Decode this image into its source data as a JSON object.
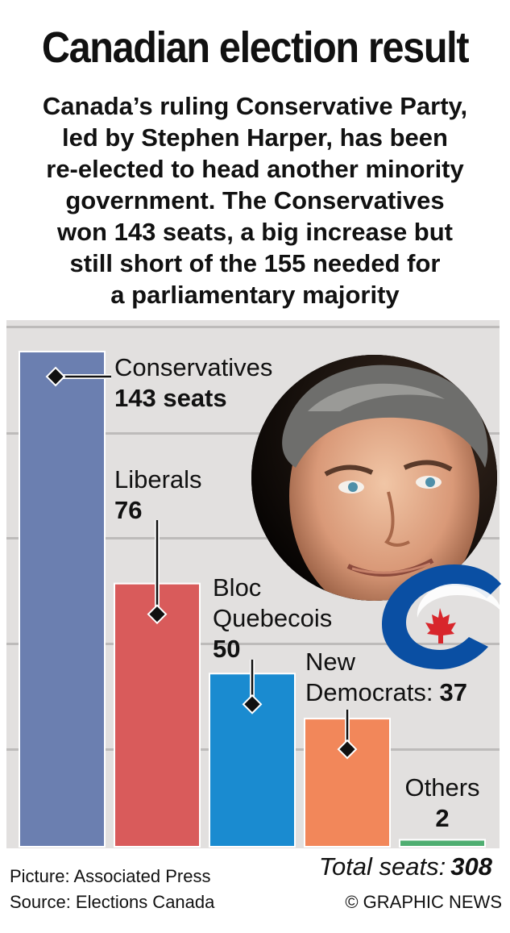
{
  "header": {
    "title": "Canadian election result",
    "subtitle_lines": [
      "Canada’s ruling Conservative Party,",
      "led by Stephen Harper, has been",
      "re-elected to head another minority",
      "government. The Conservatives",
      "won 143 seats, a big increase but",
      "still short of the 155 needed for",
      "a parliamentary majority"
    ]
  },
  "chart_data": {
    "type": "bar",
    "categories": [
      "Conservatives",
      "Liberals",
      "Bloc Quebecois",
      "New Democrats",
      "Others"
    ],
    "values": [
      143,
      76,
      50,
      37,
      2
    ],
    "value_labels": [
      "143 seats",
      "76",
      "50",
      "37",
      "2"
    ],
    "bar_colors": [
      "#6b7fb0",
      "#d95b5b",
      "#1a8bd0",
      "#f2875a",
      "#4fae71"
    ],
    "ylim": [
      0,
      143
    ],
    "grid": true
  },
  "labels": {
    "bloc_line1": "Bloc",
    "bloc_line2": "Quebecois",
    "ndp_line1": "New",
    "ndp_line2": "Democrats:"
  },
  "footer": {
    "total_label": "Total seats:",
    "total_value": "308",
    "picture_credit": "Picture: Associated Press",
    "source_credit": "Source: Elections Canada",
    "copyright": "© GRAPHIC NEWS"
  },
  "colors": {
    "panel_bg": "#e2e0df",
    "grid_line": "#bdbbba",
    "logo_blue": "#0a4fa3",
    "logo_red": "#d8262c"
  },
  "images": {
    "photo": "portrait-photo",
    "logo": "party-logo"
  }
}
